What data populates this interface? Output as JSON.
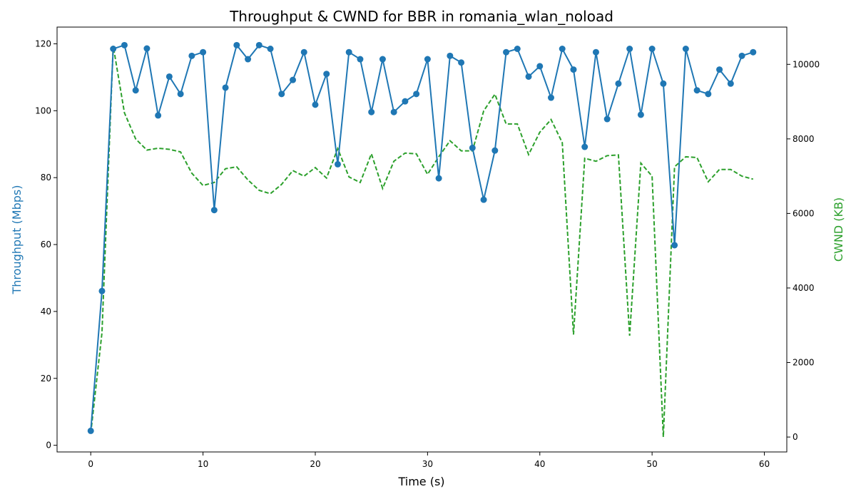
{
  "chart_data": {
    "type": "line",
    "title": "Throughput & CWND for BBR in romania_wlan_noload",
    "xlabel": "Time (s)",
    "ylabel_left": "Throughput (Mbps)",
    "ylabel_right": "CWND (KB)",
    "xlim": [
      -3,
      62
    ],
    "ylim_left": [
      -2,
      125
    ],
    "ylim_right": [
      -400,
      11000
    ],
    "x_ticks": [
      0,
      10,
      20,
      30,
      40,
      50,
      60
    ],
    "y_ticks_left": [
      0,
      20,
      40,
      60,
      80,
      100,
      120
    ],
    "y_ticks_right": [
      0,
      2000,
      4000,
      6000,
      8000,
      10000
    ],
    "grid": false,
    "colors": {
      "throughput": "#1f77b4",
      "cwnd": "#2ca02c"
    },
    "x": [
      0,
      1,
      2,
      3,
      4,
      5,
      6,
      7,
      8,
      9,
      10,
      11,
      12,
      13,
      14,
      15,
      16,
      17,
      18,
      19,
      20,
      21,
      22,
      23,
      24,
      25,
      26,
      27,
      28,
      29,
      30,
      31,
      32,
      33,
      34,
      35,
      36,
      37,
      38,
      39,
      40,
      41,
      42,
      43,
      44,
      45,
      46,
      47,
      48,
      49,
      50,
      51,
      52,
      53,
      54,
      55,
      56,
      57,
      58,
      59
    ],
    "series": [
      {
        "axis": "left",
        "style": "solid-markers",
        "values": [
          4.3,
          46.1,
          118.5,
          119.6,
          106.1,
          118.6,
          98.6,
          110.2,
          105.0,
          116.4,
          117.5,
          70.3,
          106.9,
          119.6,
          115.4,
          119.6,
          118.5,
          105.0,
          109.2,
          117.5,
          101.8,
          111.0,
          84.0,
          117.5,
          115.4,
          99.6,
          115.4,
          99.6,
          102.8,
          105.0,
          115.4,
          79.8,
          116.4,
          114.4,
          88.9,
          73.4,
          88.1,
          117.5,
          118.5,
          110.2,
          113.3,
          103.9,
          118.5,
          112.3,
          89.2,
          117.5,
          97.5,
          108.1,
          118.5,
          98.8,
          118.5,
          108.1,
          59.8,
          118.5,
          106.1,
          105.0,
          112.3,
          108.1,
          116.4,
          117.5
        ]
      },
      {
        "axis": "right",
        "style": "dashed",
        "values": [
          100,
          2800,
          10500,
          8700,
          8000,
          7700,
          7750,
          7720,
          7650,
          7080,
          6750,
          6830,
          7200,
          7250,
          6900,
          6620,
          6530,
          6780,
          7150,
          7000,
          7230,
          6950,
          7740,
          6980,
          6830,
          7600,
          6670,
          7400,
          7620,
          7600,
          7050,
          7520,
          7950,
          7680,
          7680,
          8750,
          9200,
          8400,
          8400,
          7580,
          8180,
          8520,
          7900,
          2750,
          7480,
          7400,
          7550,
          7570,
          2720,
          7350,
          7000,
          0,
          7250,
          7520,
          7500,
          6850,
          7180,
          7180,
          7000,
          6920
        ]
      }
    ]
  }
}
